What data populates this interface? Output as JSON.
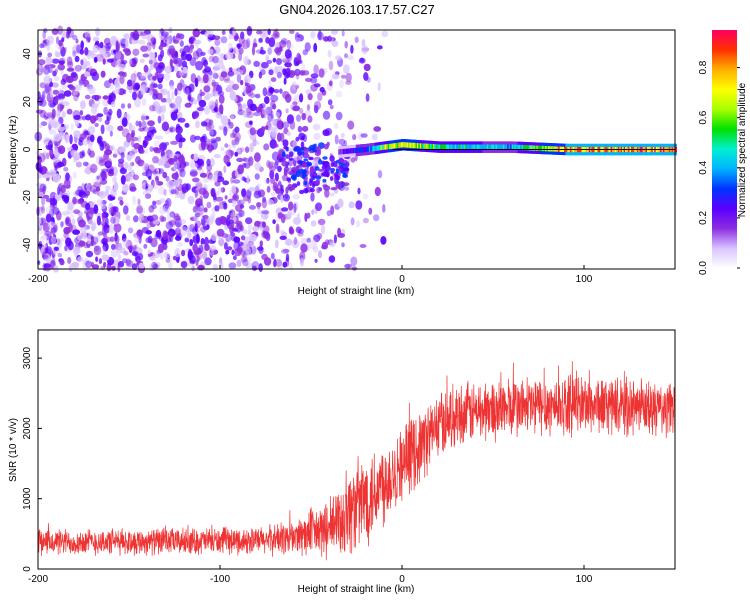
{
  "title": "GN04.2026.103.17.57.C27",
  "chart_data": [
    {
      "type": "heatmap",
      "name": "spectrogram",
      "xlabel": "Height of straight line (km)",
      "ylabel": "Frequency (Hz)",
      "xlim": [
        -200,
        150
      ],
      "ylim": [
        -50,
        50
      ],
      "xticks": [
        -200,
        -100,
        0,
        100
      ],
      "xtick_labels": [
        "-200",
        "-100",
        "0",
        "100"
      ],
      "yticks": [
        -40,
        -20,
        0,
        20,
        40
      ],
      "ytick_labels": [
        "-40",
        "-20",
        "0",
        "20",
        "40"
      ],
      "colorbar": {
        "label": "Normalized spectral amplitude",
        "range": [
          0,
          0.95
        ],
        "ticks": [
          0,
          0.2,
          0.4,
          0.6,
          0.8
        ],
        "tick_labels": [
          "0.0",
          "0.2",
          "0.4",
          "0.6",
          "0.8"
        ],
        "colors": [
          "#ffffff",
          "#d9c4ff",
          "#8b2be2",
          "#5a00ff",
          "#0033ff",
          "#00b4ff",
          "#00f0d0",
          "#00e000",
          "#a8ff00",
          "#ffff00",
          "#ffb000",
          "#ff3000",
          "#ff0060"
        ]
      },
      "features": {
        "noise_region_x": [
          -200,
          -30
        ],
        "carrier_trace": [
          {
            "x": -35,
            "freq": -1,
            "amp": 0.2
          },
          {
            "x": -20,
            "freq": 0,
            "amp": 0.3
          },
          {
            "x": -10,
            "freq": 1,
            "amp": 0.6
          },
          {
            "x": 0,
            "freq": 2,
            "amp": 0.7
          },
          {
            "x": 20,
            "freq": 1,
            "amp": 0.5
          },
          {
            "x": 60,
            "freq": 1,
            "amp": 0.4
          },
          {
            "x": 90,
            "freq": 0,
            "amp": 0.8
          },
          {
            "x": 150,
            "freq": 0,
            "amp": 0.85
          }
        ],
        "reference_line_freq": 0
      }
    },
    {
      "type": "line",
      "name": "snr",
      "xlabel": "Height of straight line (km)",
      "ylabel": "SNR (10 * v/v)",
      "xlim": [
        -200,
        150
      ],
      "ylim": [
        0,
        3400
      ],
      "xticks": [
        -200,
        -100,
        0,
        100
      ],
      "xtick_labels": [
        "-200",
        "-100",
        "0",
        "100"
      ],
      "yticks": [
        0,
        1000,
        2000,
        3000
      ],
      "ytick_labels": [
        "0",
        "1000",
        "2000",
        "3000"
      ],
      "color": "#ee3333",
      "series": [
        {
          "name": "SNR",
          "envelope_x": [
            -200,
            -80,
            -60,
            -40,
            -30,
            -20,
            -10,
            0,
            10,
            20,
            30,
            60,
            100,
            150
          ],
          "envelope_mean": [
            380,
            400,
            450,
            560,
            800,
            1000,
            1250,
            1500,
            1750,
            2050,
            2200,
            2300,
            2350,
            2250
          ],
          "envelope_spread": [
            180,
            180,
            250,
            400,
            600,
            650,
            600,
            500,
            500,
            450,
            420,
            420,
            400,
            380
          ]
        }
      ]
    }
  ]
}
